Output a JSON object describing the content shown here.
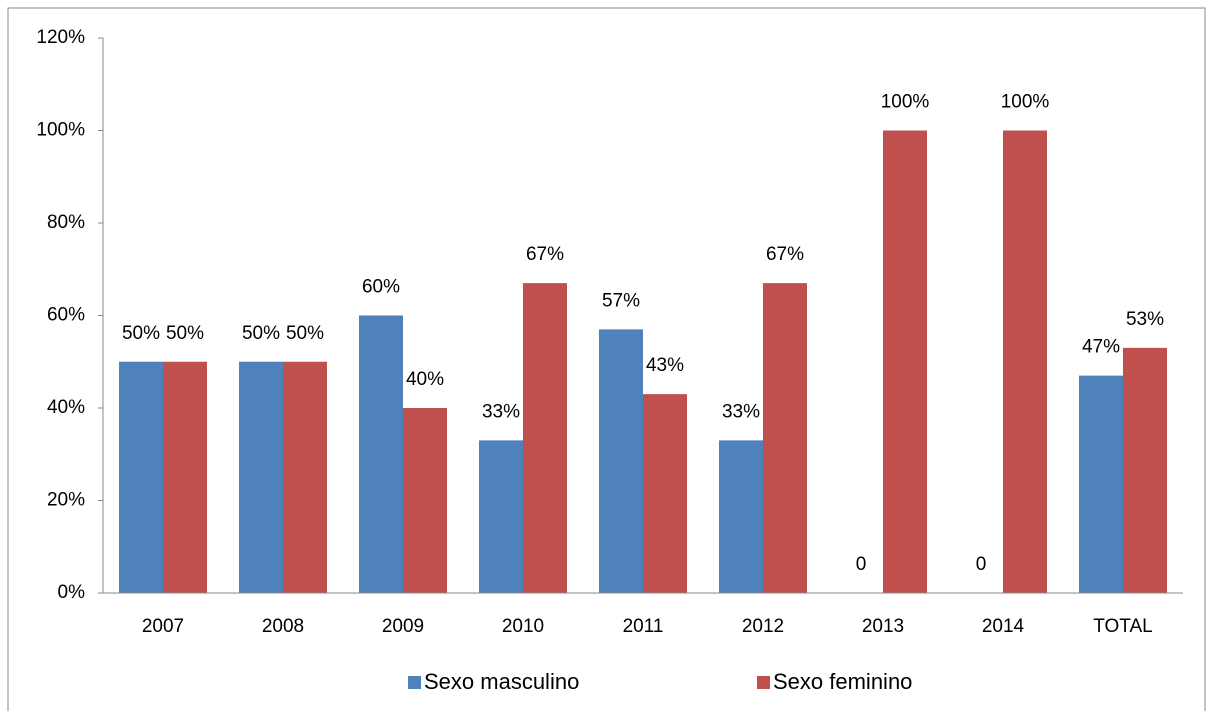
{
  "chart_data": {
    "type": "bar",
    "categories": [
      "2007",
      "2008",
      "2009",
      "2010",
      "2011",
      "2012",
      "2013",
      "2014",
      "TOTAL"
    ],
    "series": [
      {
        "name": "Sexo masculino",
        "color": "#4f81bd",
        "values": [
          50,
          50,
          60,
          33,
          57,
          33,
          0,
          0,
          47
        ],
        "value_labels": [
          "50%",
          "50%",
          "60%",
          "33%",
          "57%",
          "33%",
          "0",
          "0",
          "47%"
        ]
      },
      {
        "name": "Sexo feminino",
        "color": "#c0504d",
        "values": [
          50,
          50,
          40,
          67,
          43,
          67,
          100,
          100,
          53
        ],
        "value_labels": [
          "50%",
          "50%",
          "40%",
          "67%",
          "43%",
          "67%",
          "100%",
          "100%",
          "53%"
        ]
      }
    ],
    "ylim": [
      0,
      120
    ],
    "yticks": [
      {
        "value": 0,
        "label": "0%"
      },
      {
        "value": 20,
        "label": "20%"
      },
      {
        "value": 40,
        "label": "40%"
      },
      {
        "value": 60,
        "label": "60%"
      },
      {
        "value": 80,
        "label": "80%"
      },
      {
        "value": 100,
        "label": "100%"
      },
      {
        "value": 120,
        "label": "120%"
      }
    ],
    "grid": false,
    "legend": "bottom"
  }
}
